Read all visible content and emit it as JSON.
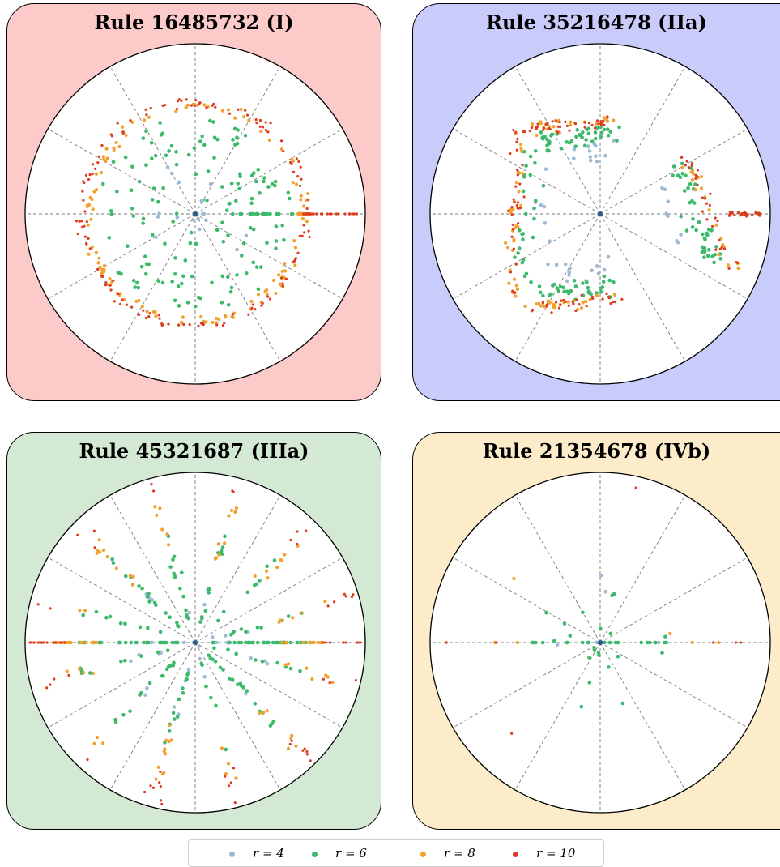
{
  "colors": {
    "r4": "#9fbad3",
    "r6": "#3cb96a",
    "r8": "#f3a12c",
    "r10": "#dd3b1f"
  },
  "legend": [
    {
      "key": "r4",
      "label": "r = 4"
    },
    {
      "key": "r6",
      "label": "r = 6"
    },
    {
      "key": "r8",
      "label": "r = 8"
    },
    {
      "key": "r10",
      "label": "r = 10"
    }
  ],
  "panels": [
    {
      "title": "Rule 16485732 (I)",
      "background": "#fdcaca"
    },
    {
      "title": "Rule 35216478 (IIa)",
      "background": "#c9ccfb"
    },
    {
      "title": "Rule 45321687 (IIIa)",
      "background": "#d3e9d3"
    },
    {
      "title": "Rule 21354678 (IVb)",
      "background": "#fdecc9"
    }
  ],
  "chart_data": [
    {
      "type": "scatter",
      "title": "Rule 16485732 (I)",
      "coordinate_system": "polar",
      "radial_range": [
        0,
        1
      ],
      "angular_gridlines_deg": [
        0,
        30,
        60,
        90,
        120,
        150,
        180,
        210,
        240,
        270,
        300,
        330
      ],
      "pattern": "ring",
      "series": [
        {
          "name": "r = 4",
          "color_key": "r4",
          "shell_radius": 0.25,
          "count": 20
        },
        {
          "name": "r = 6",
          "color_key": "r6",
          "shell_radius": 0.5,
          "count": 160
        },
        {
          "name": "r = 8",
          "color_key": "r8",
          "shell_radius": 0.63,
          "count": 140
        },
        {
          "name": "r = 10",
          "color_key": "r10",
          "shell_radius": 0.66,
          "count": 160
        }
      ]
    },
    {
      "type": "scatter",
      "title": "Rule 35216478 (IIa)",
      "coordinate_system": "polar",
      "radial_range": [
        0,
        1
      ],
      "angular_gridlines_deg": [
        0,
        30,
        60,
        90,
        120,
        150,
        180,
        210,
        240,
        270,
        300,
        330
      ],
      "pattern": "bracket",
      "series": [
        {
          "name": "r = 4",
          "color_key": "r4",
          "count": 40
        },
        {
          "name": "r = 6",
          "color_key": "r6",
          "count": 150
        },
        {
          "name": "r = 8",
          "color_key": "r8",
          "count": 100
        },
        {
          "name": "r = 10",
          "color_key": "r10",
          "count": 130
        }
      ]
    },
    {
      "type": "scatter",
      "title": "Rule 45321687 (IIIa)",
      "coordinate_system": "polar",
      "radial_range": [
        0,
        1
      ],
      "angular_gridlines_deg": [
        0,
        30,
        60,
        90,
        120,
        150,
        180,
        210,
        240,
        270,
        300,
        330
      ],
      "pattern": "spokes",
      "series": [
        {
          "name": "r = 4",
          "color_key": "r4",
          "count": 40
        },
        {
          "name": "r = 6",
          "color_key": "r6",
          "count": 200
        },
        {
          "name": "r = 8",
          "color_key": "r8",
          "count": 110
        },
        {
          "name": "r = 10",
          "color_key": "r10",
          "count": 70
        }
      ]
    },
    {
      "type": "scatter",
      "title": "Rule 21354678 (IVb)",
      "coordinate_system": "polar",
      "radial_range": [
        0,
        1
      ],
      "angular_gridlines_deg": [
        0,
        30,
        60,
        90,
        120,
        150,
        180,
        210,
        240,
        270,
        300,
        330
      ],
      "pattern": "sparse",
      "series": [
        {
          "name": "r = 4",
          "color_key": "r4",
          "count": 8
        },
        {
          "name": "r = 6",
          "color_key": "r6",
          "count": 40
        },
        {
          "name": "r = 8",
          "color_key": "r8",
          "count": 6
        },
        {
          "name": "r = 10",
          "color_key": "r10",
          "count": 8
        }
      ]
    }
  ]
}
